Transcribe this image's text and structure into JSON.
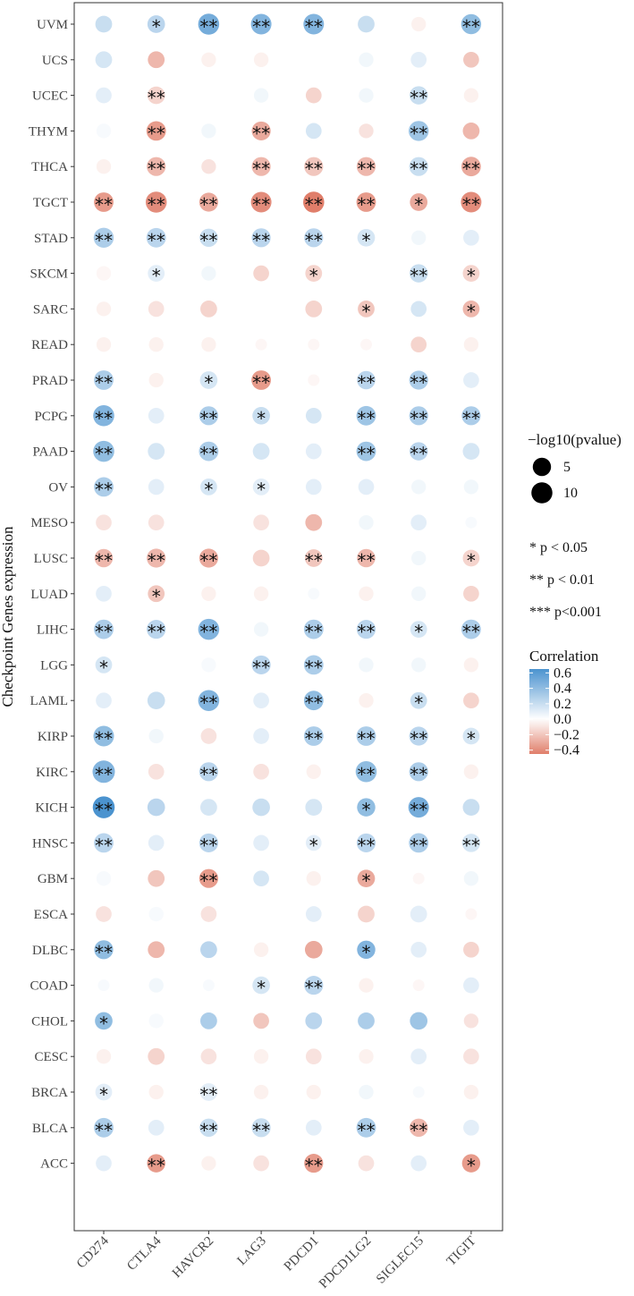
{
  "chart_data": {
    "type": "bubble-heatmap",
    "ylabel": "Checkpoint Genes expression",
    "x_categories": [
      "CD274",
      "CTLA4",
      "HAVCR2",
      "LAG3",
      "PDCD1",
      "PDCD1LG2",
      "SIGLEC15",
      "TIGIT"
    ],
    "y_categories": [
      "UVM",
      "UCS",
      "UCEC",
      "THYM",
      "THCA",
      "TGCT",
      "STAD",
      "SKCM",
      "SARC",
      "READ",
      "PRAD",
      "PCPG",
      "PAAD",
      "OV",
      "MESO",
      "LUSC",
      "LUAD",
      "LIHC",
      "LGG",
      "LAML",
      "KIRP",
      "KIRC",
      "KICH",
      "HNSC",
      "GBM",
      "ESCA",
      "DLBC",
      "COAD",
      "CHOL",
      "CESC",
      "BRCA",
      "BLCA",
      "ACC"
    ],
    "correlation": [
      [
        0.2,
        0.25,
        0.5,
        0.45,
        0.45,
        0.2,
        -0.05,
        0.4
      ],
      [
        0.15,
        -0.25,
        -0.05,
        -0.05,
        0.0,
        0.05,
        0.1,
        -0.2
      ],
      [
        0.1,
        -0.15,
        0.0,
        0.05,
        -0.15,
        0.05,
        0.2,
        -0.05
      ],
      [
        0.03,
        -0.35,
        0.05,
        -0.3,
        0.15,
        -0.1,
        0.35,
        -0.25
      ],
      [
        -0.05,
        -0.25,
        -0.1,
        -0.25,
        -0.2,
        -0.25,
        0.2,
        -0.3
      ],
      [
        -0.35,
        -0.4,
        -0.3,
        -0.4,
        -0.45,
        -0.35,
        -0.3,
        -0.4
      ],
      [
        0.3,
        0.25,
        0.2,
        0.25,
        0.25,
        0.15,
        0.05,
        0.1
      ],
      [
        -0.03,
        0.1,
        0.05,
        -0.15,
        -0.15,
        0.0,
        0.2,
        -0.15
      ],
      [
        -0.05,
        -0.1,
        -0.15,
        0.0,
        -0.15,
        -0.2,
        0.15,
        -0.25
      ],
      [
        -0.05,
        -0.05,
        -0.05,
        -0.03,
        -0.03,
        -0.03,
        -0.15,
        -0.05
      ],
      [
        0.3,
        -0.05,
        0.15,
        -0.35,
        -0.03,
        0.25,
        0.3,
        0.1
      ],
      [
        0.45,
        0.1,
        0.3,
        0.2,
        0.15,
        0.35,
        0.3,
        0.3
      ],
      [
        0.4,
        0.15,
        0.3,
        0.15,
        0.1,
        0.35,
        0.25,
        0.15
      ],
      [
        0.3,
        0.1,
        0.15,
        0.1,
        0.1,
        0.1,
        0.05,
        0.05
      ],
      [
        -0.1,
        -0.1,
        0.0,
        -0.1,
        -0.25,
        0.05,
        0.1,
        0.03
      ],
      [
        -0.25,
        -0.25,
        -0.3,
        -0.15,
        -0.2,
        -0.25,
        0.05,
        -0.15
      ],
      [
        0.1,
        -0.2,
        -0.05,
        -0.05,
        0.03,
        -0.05,
        0.05,
        -0.15
      ],
      [
        0.3,
        0.25,
        0.45,
        0.05,
        0.3,
        0.25,
        0.15,
        0.3
      ],
      [
        0.15,
        0.0,
        0.03,
        0.25,
        0.3,
        0.05,
        0.05,
        -0.05
      ],
      [
        0.1,
        0.2,
        0.45,
        0.1,
        0.4,
        -0.05,
        0.2,
        -0.15
      ],
      [
        0.4,
        0.05,
        -0.1,
        0.1,
        0.3,
        0.3,
        0.25,
        0.15
      ],
      [
        0.45,
        -0.1,
        0.25,
        -0.1,
        -0.05,
        0.4,
        0.3,
        -0.05
      ],
      [
        0.65,
        0.25,
        0.15,
        0.2,
        0.15,
        0.4,
        0.5,
        0.2
      ],
      [
        0.25,
        0.1,
        0.25,
        0.1,
        0.1,
        0.25,
        0.3,
        0.15
      ],
      [
        0.03,
        -0.2,
        -0.35,
        0.15,
        -0.05,
        -0.3,
        -0.03,
        0.05
      ],
      [
        -0.1,
        0.03,
        -0.1,
        0.0,
        0.1,
        -0.15,
        0.1,
        -0.03
      ],
      [
        0.4,
        -0.25,
        0.25,
        -0.05,
        -0.3,
        0.45,
        0.1,
        -0.15
      ],
      [
        0.03,
        0.05,
        0.03,
        0.15,
        0.25,
        -0.05,
        -0.03,
        0.1
      ],
      [
        0.4,
        0.03,
        0.3,
        -0.2,
        0.25,
        0.3,
        0.35,
        -0.1
      ],
      [
        -0.05,
        -0.15,
        -0.1,
        -0.05,
        -0.1,
        -0.05,
        0.1,
        -0.1
      ],
      [
        0.1,
        -0.05,
        0.1,
        -0.05,
        -0.05,
        0.05,
        0.03,
        -0.05
      ],
      [
        0.3,
        0.1,
        0.2,
        0.2,
        0.1,
        0.3,
        -0.25,
        0.1
      ],
      [
        0.1,
        -0.35,
        -0.05,
        -0.1,
        -0.35,
        -0.1,
        0.1,
        -0.35
      ]
    ],
    "neg_log10_pvalue": [
      [
        3,
        4,
        10,
        9,
        9,
        3,
        1,
        8
      ],
      [
        3,
        3,
        1,
        1,
        0,
        1,
        2,
        2
      ],
      [
        2,
        4,
        0,
        1,
        2,
        1,
        5,
        1
      ],
      [
        1,
        7,
        1,
        6,
        2,
        1,
        8,
        3
      ],
      [
        1,
        6,
        1,
        6,
        6,
        6,
        6,
        7
      ],
      [
        7,
        10,
        6,
        9,
        10,
        7,
        4,
        9
      ],
      [
        8,
        7,
        5,
        6,
        6,
        4,
        1,
        2
      ],
      [
        1,
        3,
        1,
        2,
        3,
        0,
        5,
        3
      ],
      [
        1,
        2,
        3,
        0,
        3,
        3,
        2,
        3
      ],
      [
        1,
        1,
        1,
        0,
        0,
        0,
        2,
        1
      ],
      [
        7,
        1,
        4,
        7,
        0,
        5,
        6,
        2
      ],
      [
        10,
        2,
        6,
        4,
        2,
        7,
        6,
        6
      ],
      [
        10,
        3,
        7,
        3,
        2,
        7,
        5,
        3
      ],
      [
        7,
        2,
        3,
        3,
        2,
        2,
        1,
        1
      ],
      [
        2,
        2,
        0,
        2,
        3,
        1,
        2,
        0
      ],
      [
        5,
        6,
        6,
        3,
        4,
        5,
        1,
        3
      ],
      [
        2,
        3,
        1,
        1,
        0,
        1,
        1,
        2
      ],
      [
        7,
        6,
        10,
        1,
        7,
        6,
        3,
        7
      ],
      [
        3,
        0,
        1,
        6,
        7,
        1,
        1,
        1
      ],
      [
        2,
        4,
        10,
        2,
        7,
        1,
        3,
        2
      ],
      [
        9,
        1,
        2,
        2,
        7,
        7,
        6,
        3
      ],
      [
        13,
        2,
        6,
        2,
        1,
        10,
        6,
        1
      ],
      [
        12,
        4,
        3,
        4,
        3,
        5,
        9,
        3
      ],
      [
        7,
        2,
        6,
        2,
        2,
        6,
        7,
        5
      ],
      [
        1,
        3,
        6,
        2,
        1,
        4,
        0,
        1
      ],
      [
        2,
        1,
        2,
        0,
        2,
        3,
        3,
        0
      ],
      [
        6,
        3,
        3,
        1,
        4,
        5,
        2,
        2
      ],
      [
        0,
        1,
        0,
        4,
        6,
        1,
        0,
        2
      ],
      [
        4,
        1,
        3,
        2,
        3,
        3,
        4,
        1
      ],
      [
        1,
        3,
        2,
        1,
        2,
        1,
        2,
        2
      ],
      [
        3,
        1,
        4,
        1,
        1,
        1,
        0,
        1
      ],
      [
        7,
        2,
        5,
        6,
        2,
        7,
        5,
        2
      ],
      [
        2,
        5,
        1,
        2,
        6,
        2,
        2,
        5
      ]
    ],
    "significance": [
      [
        "",
        "*",
        "**",
        "**",
        "**",
        "",
        "",
        "**"
      ],
      [
        "",
        "",
        "",
        "",
        "",
        "",
        "",
        ""
      ],
      [
        "",
        "**",
        "",
        "",
        "",
        "",
        "**",
        ""
      ],
      [
        "",
        "**",
        "",
        "**",
        "",
        "",
        "**",
        ""
      ],
      [
        "",
        "**",
        "",
        "**",
        "**",
        "**",
        "**",
        "**"
      ],
      [
        "**",
        "**",
        "**",
        "**",
        "**",
        "**",
        "*",
        "**"
      ],
      [
        "**",
        "**",
        "**",
        "**",
        "**",
        "*",
        "",
        ""
      ],
      [
        "",
        "*",
        "",
        "",
        "*",
        "",
        "**",
        "*"
      ],
      [
        "",
        "",
        "",
        "",
        "",
        "*",
        "",
        "*"
      ],
      [
        "",
        "",
        "",
        "",
        "",
        "",
        "",
        ""
      ],
      [
        "**",
        "",
        "*",
        "**",
        "",
        "**",
        "**",
        ""
      ],
      [
        "**",
        "",
        "**",
        "*",
        "",
        "**",
        "**",
        "**"
      ],
      [
        "**",
        "",
        "**",
        "",
        "",
        "**",
        "**",
        ""
      ],
      [
        "**",
        "",
        "*",
        "*",
        "",
        "",
        "",
        ""
      ],
      [
        "",
        "",
        "",
        "",
        "",
        "",
        "",
        ""
      ],
      [
        "**",
        "**",
        "**",
        "",
        "**",
        "**",
        "",
        "*"
      ],
      [
        "",
        "*",
        "",
        "",
        "",
        "",
        "",
        ""
      ],
      [
        "**",
        "**",
        "**",
        "",
        "**",
        "**",
        "*",
        "**"
      ],
      [
        "*",
        "",
        "",
        "**",
        "**",
        "",
        "",
        ""
      ],
      [
        "",
        "",
        "**",
        "",
        "**",
        "",
        "*",
        ""
      ],
      [
        "**",
        "",
        "",
        "",
        "**",
        "**",
        "**",
        "*"
      ],
      [
        "**",
        "",
        "**",
        "",
        "",
        "**",
        "**",
        ""
      ],
      [
        "**",
        "",
        "",
        "",
        "",
        "*",
        "**",
        ""
      ],
      [
        "**",
        "",
        "**",
        "",
        "*",
        "**",
        "**",
        "**"
      ],
      [
        "",
        "",
        "**",
        "",
        "",
        "*",
        "",
        ""
      ],
      [
        "",
        "",
        "",
        "",
        "",
        "",
        "",
        ""
      ],
      [
        "**",
        "",
        "",
        "",
        "",
        "*",
        "",
        ""
      ],
      [
        "",
        "",
        "",
        "*",
        "**",
        "",
        "",
        ""
      ],
      [
        "*",
        "",
        "",
        "",
        "",
        "",
        "",
        ""
      ],
      [
        "",
        "",
        "",
        "",
        "",
        "",
        "",
        ""
      ],
      [
        "*",
        "",
        "**",
        "",
        "",
        "",
        "",
        ""
      ],
      [
        "**",
        "",
        "**",
        "**",
        "",
        "**",
        "**",
        ""
      ],
      [
        "",
        "**",
        "",
        "",
        "**",
        "",
        "",
        "*"
      ]
    ],
    "size_legend": {
      "title": "−log10(pvalue)",
      "entries": [
        {
          "label": "5",
          "value": 5
        },
        {
          "label": "10",
          "value": 10
        }
      ]
    },
    "significance_legend": [
      "* p < 0.05",
      "** p < 0.01",
      "*** p<0.001"
    ],
    "color_legend": {
      "title": "Correlation",
      "ticks": [
        0.6,
        0.4,
        0.2,
        0.0,
        -0.2,
        -0.4
      ],
      "tick_labels": [
        "0.6",
        "0.4",
        "0.2",
        "0.0",
        "−0.2",
        "−0.4"
      ],
      "range": [
        -0.45,
        0.65
      ],
      "low_color": "#E07E6A",
      "mid_color": "#FFFFFF",
      "high_color": "#4B93CF"
    }
  }
}
